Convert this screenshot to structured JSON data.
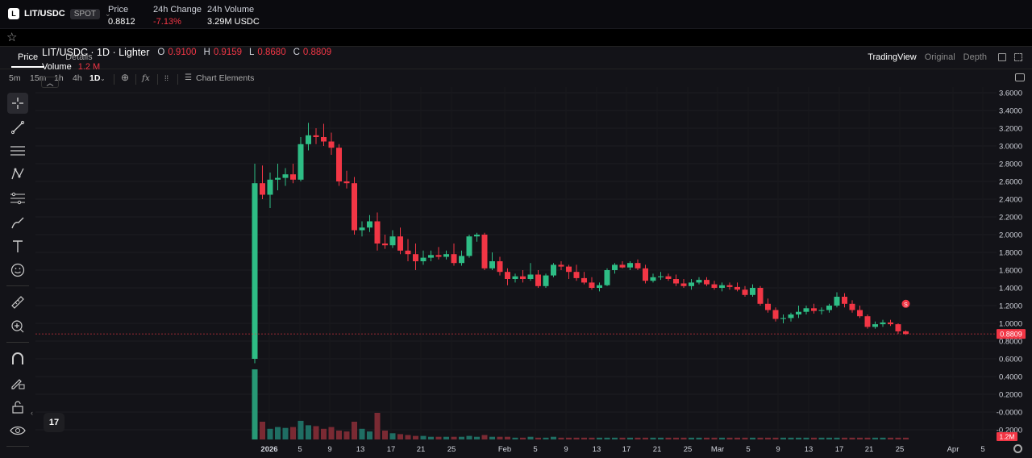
{
  "header": {
    "pair": "LIT/USDC",
    "pair_logo": "L",
    "market_type": "SPOT",
    "price_label": "Price",
    "price_value": "0.8812",
    "change_label": "24h Change",
    "change_value": "-7.13%",
    "volume_label": "24h Volume",
    "volume_value": "3.29M USDC"
  },
  "tabs": [
    {
      "label": "Price",
      "active": true
    },
    {
      "label": "Details",
      "active": false
    }
  ],
  "views": [
    {
      "label": "TradingView",
      "active": true
    },
    {
      "label": "Original",
      "active": false
    },
    {
      "label": "Depth",
      "active": false
    }
  ],
  "intervals": [
    "5m",
    "15m",
    "1h",
    "4h",
    "1D"
  ],
  "active_interval": "1D",
  "chart_elements_label": "Chart Elements",
  "legend": {
    "symbol": "LIT/USDC · 1D · Lighter",
    "o_key": "O",
    "o_val": "0.9100",
    "h_key": "H",
    "h_val": "0.9159",
    "l_key": "L",
    "l_val": "0.8680",
    "c_key": "C",
    "c_val": "0.8809",
    "volume_label": "Volume",
    "volume_value": "1.2 M"
  },
  "last_price_tag": "0.8809",
  "volume_tag": "1.2M",
  "tv_logo": "17",
  "colors": {
    "up": "#26a69a",
    "up_bright": "#2ebd85",
    "down": "#f23645",
    "bg": "#131318"
  },
  "icons": [
    "crosshair-icon",
    "trend-line-icon",
    "horizontal-lines-icon",
    "pattern-icon",
    "fib-icon",
    "brush-icon",
    "text-icon",
    "emoji-icon",
    "ruler-icon",
    "zoom-in-icon",
    "magnet-icon",
    "pencil-lock-icon",
    "lock-icon",
    "eye-icon",
    "star-icon",
    "camera-icon",
    "gear-icon"
  ],
  "chart_data": {
    "type": "candlestick",
    "title": "LIT/USDC · 1D · Lighter",
    "y_ticks": [
      "3.6000",
      "3.4000",
      "3.2000",
      "3.0000",
      "2.8000",
      "2.6000",
      "2.4000",
      "2.2000",
      "2.0000",
      "1.8000",
      "1.6000",
      "1.4000",
      "1.2000",
      "1.0000",
      "0.8000",
      "0.6000",
      "0.4000",
      "0.2000",
      "-0.0000",
      "-0.2000"
    ],
    "x_ticks": [
      "2026",
      "5",
      "9",
      "13",
      "17",
      "21",
      "25",
      "Feb",
      "5",
      "9",
      "13",
      "17",
      "21",
      "25",
      "Mar",
      "5",
      "9",
      "13",
      "17",
      "21",
      "25",
      "Apr",
      "5"
    ],
    "ylim": [
      -0.2,
      3.6
    ],
    "candles_ohlc": [
      [
        0.6,
        2.8,
        0.55,
        2.58
      ],
      [
        2.58,
        2.78,
        2.4,
        2.45
      ],
      [
        2.45,
        2.7,
        2.3,
        2.62
      ],
      [
        2.62,
        2.8,
        2.5,
        2.64
      ],
      [
        2.64,
        2.75,
        2.55,
        2.68
      ],
      [
        2.68,
        2.8,
        2.58,
        2.62
      ],
      [
        2.62,
        3.1,
        2.6,
        3.02
      ],
      [
        3.02,
        3.26,
        2.95,
        3.12
      ],
      [
        3.12,
        3.2,
        3.02,
        3.1
      ],
      [
        3.1,
        3.25,
        3.0,
        3.05
      ],
      [
        3.05,
        3.15,
        2.9,
        2.98
      ],
      [
        2.98,
        3.02,
        2.55,
        2.6
      ],
      [
        2.6,
        2.72,
        2.52,
        2.58
      ],
      [
        2.58,
        2.65,
        2.0,
        2.05
      ],
      [
        2.05,
        2.15,
        1.98,
        2.08
      ],
      [
        2.08,
        2.22,
        2.03,
        2.15
      ],
      [
        2.15,
        2.25,
        1.82,
        1.9
      ],
      [
        1.9,
        2.0,
        1.84,
        1.88
      ],
      [
        1.88,
        2.05,
        1.85,
        1.98
      ],
      [
        1.98,
        2.08,
        1.78,
        1.82
      ],
      [
        1.82,
        1.95,
        1.7,
        1.78
      ],
      [
        1.78,
        1.9,
        1.6,
        1.7
      ],
      [
        1.7,
        1.82,
        1.66,
        1.74
      ],
      [
        1.74,
        1.82,
        1.7,
        1.77
      ],
      [
        1.77,
        1.86,
        1.72,
        1.75
      ],
      [
        1.75,
        1.82,
        1.72,
        1.78
      ],
      [
        1.78,
        1.9,
        1.65,
        1.68
      ],
      [
        1.68,
        1.82,
        1.65,
        1.76
      ],
      [
        1.76,
        2.0,
        1.74,
        1.98
      ],
      [
        1.98,
        2.02,
        1.92,
        2.0
      ],
      [
        2.0,
        2.02,
        1.6,
        1.62
      ],
      [
        1.62,
        1.8,
        1.6,
        1.7
      ],
      [
        1.7,
        1.75,
        1.54,
        1.58
      ],
      [
        1.58,
        1.62,
        1.43,
        1.5
      ],
      [
        1.5,
        1.56,
        1.46,
        1.53
      ],
      [
        1.53,
        1.6,
        1.46,
        1.5
      ],
      [
        1.5,
        1.68,
        1.48,
        1.55
      ],
      [
        1.55,
        1.6,
        1.4,
        1.42
      ],
      [
        1.42,
        1.56,
        1.4,
        1.54
      ],
      [
        1.54,
        1.68,
        1.52,
        1.66
      ],
      [
        1.66,
        1.7,
        1.6,
        1.64
      ],
      [
        1.64,
        1.66,
        1.5,
        1.58
      ],
      [
        1.58,
        1.66,
        1.48,
        1.51
      ],
      [
        1.51,
        1.58,
        1.44,
        1.46
      ],
      [
        1.46,
        1.52,
        1.38,
        1.4
      ],
      [
        1.4,
        1.46,
        1.36,
        1.43
      ],
      [
        1.43,
        1.62,
        1.42,
        1.6
      ],
      [
        1.6,
        1.68,
        1.56,
        1.66
      ],
      [
        1.66,
        1.7,
        1.62,
        1.63
      ],
      [
        1.63,
        1.7,
        1.6,
        1.68
      ],
      [
        1.68,
        1.72,
        1.6,
        1.62
      ],
      [
        1.62,
        1.66,
        1.45,
        1.48
      ],
      [
        1.48,
        1.56,
        1.46,
        1.52
      ],
      [
        1.52,
        1.58,
        1.49,
        1.53
      ],
      [
        1.53,
        1.56,
        1.48,
        1.5
      ],
      [
        1.5,
        1.55,
        1.42,
        1.45
      ],
      [
        1.45,
        1.5,
        1.4,
        1.42
      ],
      [
        1.42,
        1.5,
        1.38,
        1.46
      ],
      [
        1.46,
        1.52,
        1.44,
        1.49
      ],
      [
        1.49,
        1.52,
        1.42,
        1.44
      ],
      [
        1.44,
        1.48,
        1.38,
        1.4
      ],
      [
        1.4,
        1.46,
        1.36,
        1.43
      ],
      [
        1.43,
        1.46,
        1.38,
        1.41
      ],
      [
        1.41,
        1.46,
        1.36,
        1.38
      ],
      [
        1.38,
        1.42,
        1.3,
        1.32
      ],
      [
        1.32,
        1.44,
        1.3,
        1.4
      ],
      [
        1.4,
        1.42,
        1.2,
        1.22
      ],
      [
        1.22,
        1.28,
        1.12,
        1.15
      ],
      [
        1.15,
        1.18,
        1.02,
        1.05
      ],
      [
        1.05,
        1.1,
        1.0,
        1.06
      ],
      [
        1.06,
        1.12,
        1.02,
        1.1
      ],
      [
        1.1,
        1.2,
        1.06,
        1.13
      ],
      [
        1.13,
        1.2,
        1.1,
        1.17
      ],
      [
        1.17,
        1.22,
        1.11,
        1.14
      ],
      [
        1.14,
        1.18,
        1.1,
        1.15
      ],
      [
        1.15,
        1.22,
        1.12,
        1.2
      ],
      [
        1.2,
        1.35,
        1.18,
        1.3
      ],
      [
        1.3,
        1.34,
        1.18,
        1.22
      ],
      [
        1.22,
        1.26,
        1.12,
        1.15
      ],
      [
        1.15,
        1.2,
        1.06,
        1.08
      ],
      [
        1.08,
        1.1,
        0.94,
        0.96
      ],
      [
        0.96,
        1.02,
        0.94,
        0.99
      ],
      [
        0.99,
        1.04,
        0.96,
        1.01
      ],
      [
        1.01,
        1.04,
        0.97,
        0.99
      ],
      [
        0.99,
        1.0,
        0.88,
        0.91
      ],
      [
        0.91,
        0.92,
        0.87,
        0.88
      ]
    ],
    "volume_relative": [
      0.79,
      0.2,
      0.12,
      0.14,
      0.13,
      0.14,
      0.21,
      0.16,
      0.15,
      0.12,
      0.14,
      0.1,
      0.09,
      0.2,
      0.12,
      0.09,
      0.3,
      0.1,
      0.07,
      0.06,
      0.05,
      0.04,
      0.04,
      0.03,
      0.03,
      0.03,
      0.03,
      0.03,
      0.04,
      0.03,
      0.05,
      0.03,
      0.03,
      0.03,
      0.02,
      0.02,
      0.03,
      0.02,
      0.02,
      0.03,
      0.02,
      0.02,
      0.02,
      0.02,
      0.02,
      0.02,
      0.02,
      0.02,
      0.02,
      0.02,
      0.02,
      0.02,
      0.02,
      0.02,
      0.02,
      0.02,
      0.02,
      0.02,
      0.02,
      0.02,
      0.02,
      0.02,
      0.02,
      0.02,
      0.02,
      0.02,
      0.02,
      0.02,
      0.02,
      0.02,
      0.02,
      0.02,
      0.02,
      0.02,
      0.02,
      0.02,
      0.02,
      0.02,
      0.02,
      0.02,
      0.02,
      0.02,
      0.02,
      0.02,
      0.02,
      0.02
    ],
    "last_price": 0.8809
  }
}
